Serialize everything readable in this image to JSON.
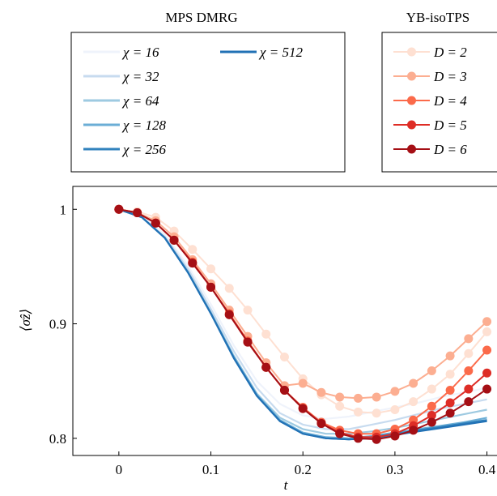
{
  "chart_data": {
    "type": "line",
    "xlabel": "t",
    "ylabel": "⟨σ̂z⟩",
    "xlim": [
      -0.05,
      0.425
    ],
    "ylim": [
      0.785,
      1.02
    ],
    "xticks": [
      "0",
      "0.1",
      "0.2",
      "0.3",
      "0.4"
    ],
    "yticks": [
      "0.8",
      "0.9",
      "1"
    ],
    "grid": false,
    "legends": [
      {
        "title": "MPS DMRG",
        "placement": "top-left"
      },
      {
        "title": "YB-isoTPS",
        "placement": "top-right"
      }
    ],
    "mps_x": [
      0,
      0.025,
      0.05,
      0.075,
      0.1,
      0.125,
      0.15,
      0.175,
      0.2,
      0.225,
      0.25,
      0.275,
      0.3,
      0.325,
      0.35,
      0.375,
      0.4
    ],
    "mps_series": [
      {
        "name": "χ = 16",
        "color": "#eff3fb",
        "values": [
          1.0,
          0.994,
          0.978,
          0.951,
          0.917,
          0.881,
          0.85,
          0.83,
          0.82,
          0.817,
          0.819,
          0.823,
          0.827,
          0.831,
          0.836,
          0.84,
          0.844
        ]
      },
      {
        "name": "χ = 32",
        "color": "#c7dbef",
        "values": [
          1.0,
          0.993,
          0.976,
          0.948,
          0.913,
          0.876,
          0.844,
          0.822,
          0.812,
          0.808,
          0.808,
          0.812,
          0.816,
          0.821,
          0.826,
          0.83,
          0.834
        ]
      },
      {
        "name": "χ = 64",
        "color": "#9ecae1",
        "values": [
          1.0,
          0.993,
          0.975,
          0.946,
          0.91,
          0.872,
          0.839,
          0.818,
          0.808,
          0.804,
          0.804,
          0.806,
          0.809,
          0.813,
          0.817,
          0.821,
          0.825
        ]
      },
      {
        "name": "χ = 128",
        "color": "#6baed6",
        "values": [
          1.0,
          0.993,
          0.975,
          0.945,
          0.909,
          0.871,
          0.838,
          0.816,
          0.805,
          0.801,
          0.8,
          0.802,
          0.805,
          0.808,
          0.811,
          0.814,
          0.818
        ]
      },
      {
        "name": "χ = 256",
        "color": "#3182bd",
        "values": [
          1.0,
          0.993,
          0.975,
          0.945,
          0.909,
          0.87,
          0.837,
          0.815,
          0.804,
          0.8,
          0.799,
          0.801,
          0.804,
          0.807,
          0.81,
          0.813,
          0.816
        ]
      },
      {
        "name": "χ = 512",
        "color": "#2171b5",
        "values": [
          1.0,
          0.993,
          0.975,
          0.945,
          0.909,
          0.87,
          0.837,
          0.815,
          0.804,
          0.8,
          0.799,
          0.8,
          0.803,
          0.806,
          0.809,
          0.812,
          0.815
        ]
      }
    ],
    "isotps_x": [
      0,
      0.02,
      0.04,
      0.06,
      0.08,
      0.1,
      0.12,
      0.14,
      0.16,
      0.18,
      0.2,
      0.22,
      0.24,
      0.26,
      0.28,
      0.3,
      0.32,
      0.34,
      0.36,
      0.38,
      0.4
    ],
    "isotps_series": [
      {
        "name": "D = 2",
        "color": "#fee0d2",
        "values": [
          1.0,
          0.998,
          0.993,
          0.981,
          0.965,
          0.948,
          0.931,
          0.912,
          0.891,
          0.871,
          0.852,
          0.838,
          0.828,
          0.823,
          0.822,
          0.825,
          0.832,
          0.843,
          0.856,
          0.874,
          0.893
        ]
      },
      {
        "name": "D = 3",
        "color": "#fcae91",
        "values": [
          1.0,
          0.997,
          0.99,
          0.976,
          0.956,
          0.935,
          0.912,
          0.889,
          0.866,
          0.846,
          0.848,
          0.84,
          0.836,
          0.835,
          0.836,
          0.841,
          0.848,
          0.859,
          0.872,
          0.887,
          0.902
        ]
      },
      {
        "name": "D = 4",
        "color": "#fb6a4a",
        "values": [
          1.0,
          0.997,
          0.988,
          0.973,
          0.954,
          0.932,
          0.909,
          0.885,
          0.862,
          0.842,
          0.827,
          0.814,
          0.807,
          0.804,
          0.804,
          0.808,
          0.816,
          0.828,
          0.842,
          0.859,
          0.877
        ]
      },
      {
        "name": "D = 5",
        "color": "#de2d26",
        "values": [
          1.0,
          0.997,
          0.988,
          0.973,
          0.953,
          0.932,
          0.908,
          0.884,
          0.862,
          0.842,
          0.826,
          0.813,
          0.805,
          0.801,
          0.801,
          0.804,
          0.811,
          0.82,
          0.831,
          0.843,
          0.857
        ]
      },
      {
        "name": "D = 6",
        "color": "#a50f15",
        "values": [
          1.0,
          0.997,
          0.988,
          0.973,
          0.953,
          0.932,
          0.908,
          0.884,
          0.862,
          0.842,
          0.826,
          0.813,
          0.804,
          0.8,
          0.799,
          0.802,
          0.807,
          0.814,
          0.822,
          0.832,
          0.843
        ]
      }
    ]
  }
}
